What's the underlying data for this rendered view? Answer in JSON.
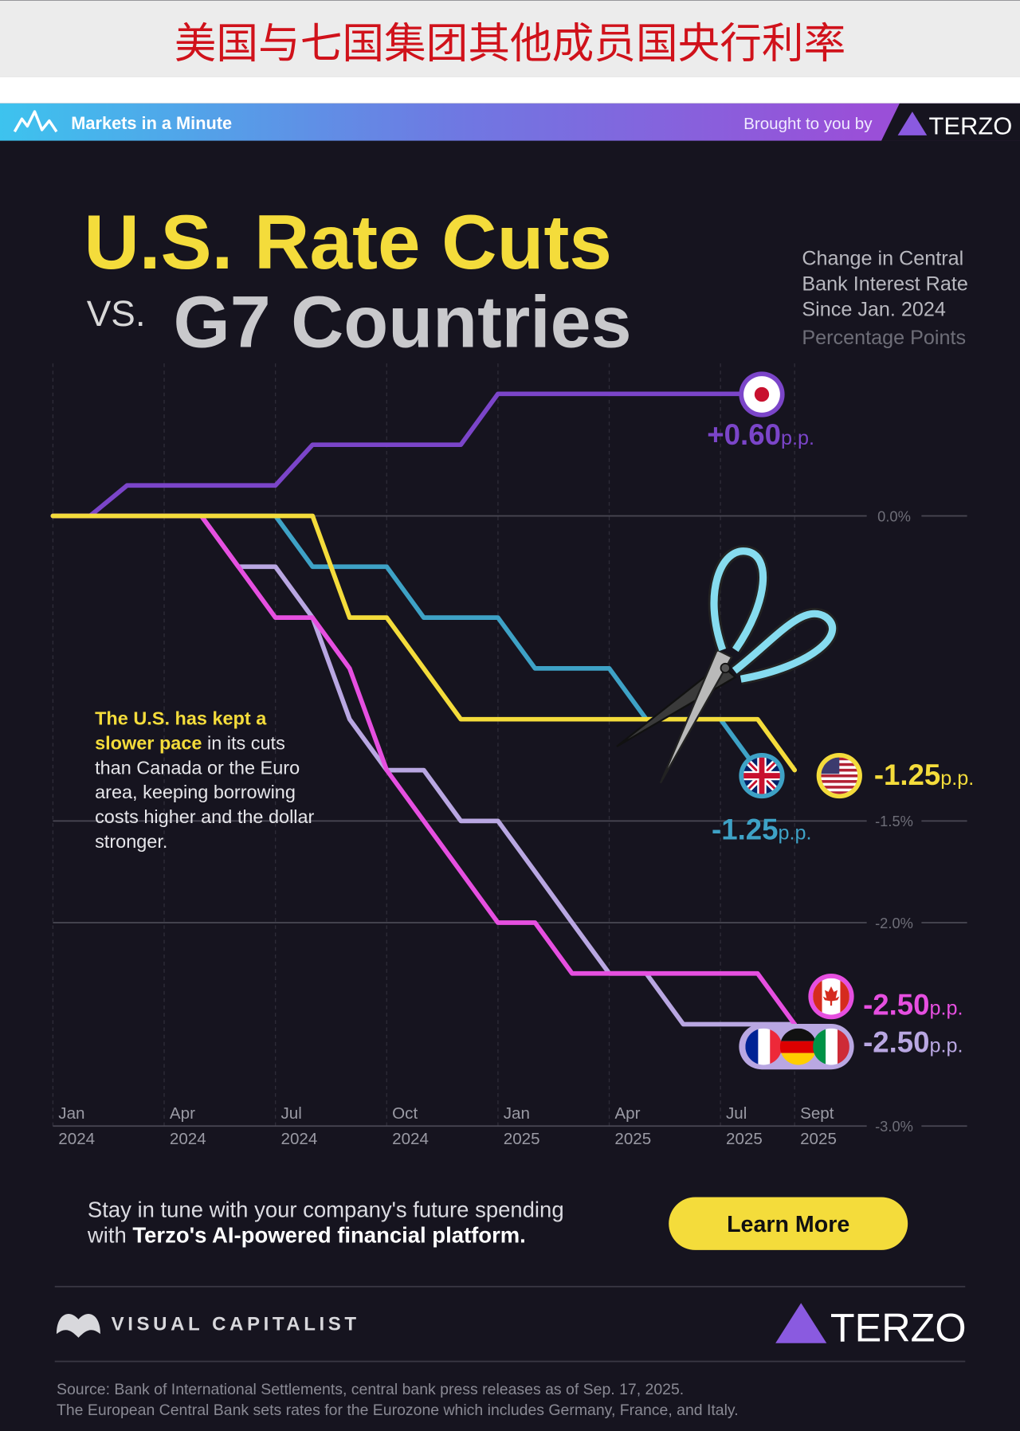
{
  "header": {
    "title": "美国与七国集团其他成员国央行利率"
  },
  "banner": {
    "brand": "Markets in a Minute",
    "sponsor_text": "Brought to you by",
    "sponsor": "TERZO"
  },
  "chart_data": {
    "type": "line",
    "title": "U.S. Rate Cuts",
    "title_vs": "VS.",
    "title_2": "G7 Countries",
    "subtitle": [
      "Change in Central",
      "Bank Interest Rate",
      "Since Jan. 2024"
    ],
    "units": "Percentage Points",
    "annotation": {
      "highlight_1": "The U.S. has kept",
      "highlight_2": "a slower pace",
      "text": "in its cuts than Canada or the Euro area, keeping borrowing costs higher and the dollar stronger."
    },
    "categories": [
      "Jan 2024",
      null,
      null,
      "Apr 2024",
      null,
      null,
      "Jul 2024",
      null,
      null,
      "Oct 2024",
      null,
      null,
      "Jan 2025",
      null,
      null,
      "Apr 2025",
      null,
      null,
      "Jul 2025",
      null,
      "Sept 2025"
    ],
    "label_unit": "p.p.",
    "series": [
      {
        "color": "#7b45c9",
        "values": [
          0,
          0,
          0.15,
          0.15,
          0.15,
          0.15,
          0.15,
          0.35,
          0.35,
          0.35,
          0.35,
          0.35,
          0.6,
          0.6,
          0.6,
          0.6,
          0.6,
          0.6,
          0.6,
          0.6,
          null
        ],
        "value_labels": [
          null,
          null,
          null,
          null,
          null,
          null,
          null,
          null,
          null,
          null,
          null,
          null,
          null,
          null,
          null,
          null,
          null,
          null,
          null,
          "+0.60",
          null
        ]
      },
      {
        "color": "#3ea2c6",
        "values": [
          0,
          0,
          0,
          0,
          0,
          0,
          0,
          -0.25,
          -0.25,
          -0.25,
          -0.5,
          -0.5,
          -0.5,
          -0.75,
          -0.75,
          -0.75,
          -1.0,
          -1.0,
          -1.0,
          -1.25,
          null
        ],
        "value_labels": [
          null,
          null,
          null,
          null,
          null,
          null,
          null,
          null,
          null,
          null,
          null,
          null,
          null,
          null,
          null,
          null,
          null,
          null,
          null,
          "-1.25",
          null
        ]
      },
      {
        "color": "#b9a7e2",
        "values": [
          0,
          0,
          0,
          0,
          0,
          -0.25,
          -0.25,
          -0.5,
          -1.0,
          -1.25,
          -1.25,
          -1.5,
          -1.5,
          -1.75,
          -2.0,
          -2.25,
          -2.25,
          -2.5,
          -2.5,
          -2.5,
          -2.5
        ],
        "value_labels": [
          null,
          null,
          null,
          null,
          null,
          null,
          null,
          null,
          null,
          null,
          null,
          null,
          null,
          null,
          null,
          null,
          null,
          null,
          null,
          null,
          "-2.50"
        ]
      },
      {
        "color": "#e64fe0",
        "values": [
          0,
          0,
          0,
          0,
          0,
          -0.25,
          -0.5,
          -0.5,
          -0.75,
          -1.25,
          -1.5,
          -1.75,
          -2.0,
          -2.0,
          -2.25,
          -2.25,
          -2.25,
          -2.25,
          -2.25,
          -2.25,
          -2.5
        ],
        "value_labels": [
          null,
          null,
          null,
          null,
          null,
          null,
          null,
          null,
          null,
          null,
          null,
          null,
          null,
          null,
          null,
          null,
          null,
          null,
          null,
          null,
          "-2.50"
        ]
      },
      {
        "color": "#f4dc3b",
        "values": [
          0,
          0,
          0,
          0,
          0,
          0,
          0,
          0,
          -0.5,
          -0.5,
          -0.75,
          -1.0,
          -1.0,
          -1.0,
          -1.0,
          -1.0,
          -1.0,
          -1.0,
          -1.0,
          -1.0,
          -1.25
        ],
        "value_labels": [
          null,
          null,
          null,
          null,
          null,
          null,
          null,
          null,
          null,
          null,
          null,
          null,
          null,
          null,
          null,
          null,
          null,
          null,
          null,
          null,
          "-1.25"
        ]
      }
    ],
    "ylim": [
      -3.0,
      0.75
    ],
    "yticks": [
      {
        "value": 0,
        "label": "0.0%"
      },
      {
        "value": -1.5,
        "label": "-1.5%"
      },
      {
        "value": -2.0,
        "label": "-2.0%"
      },
      {
        "value": -3.0,
        "label": "-3.0%"
      }
    ],
    "grid": true
  },
  "cta": {
    "text_1": "Stay in tune with your company's future spending",
    "text_2": "with",
    "text_2_bold": "Terzo's AI-powered financial platform.",
    "button": "Learn More"
  },
  "footer": {
    "publisher": "VISUAL CAPITALIST",
    "partner": "TERZO",
    "source": [
      "Source: Bank of International Settlements, central bank press releases as of Sep. 17, 2025.",
      "The European Central Bank sets rates for the Eurozone which includes Germany, France, and Italy."
    ]
  }
}
